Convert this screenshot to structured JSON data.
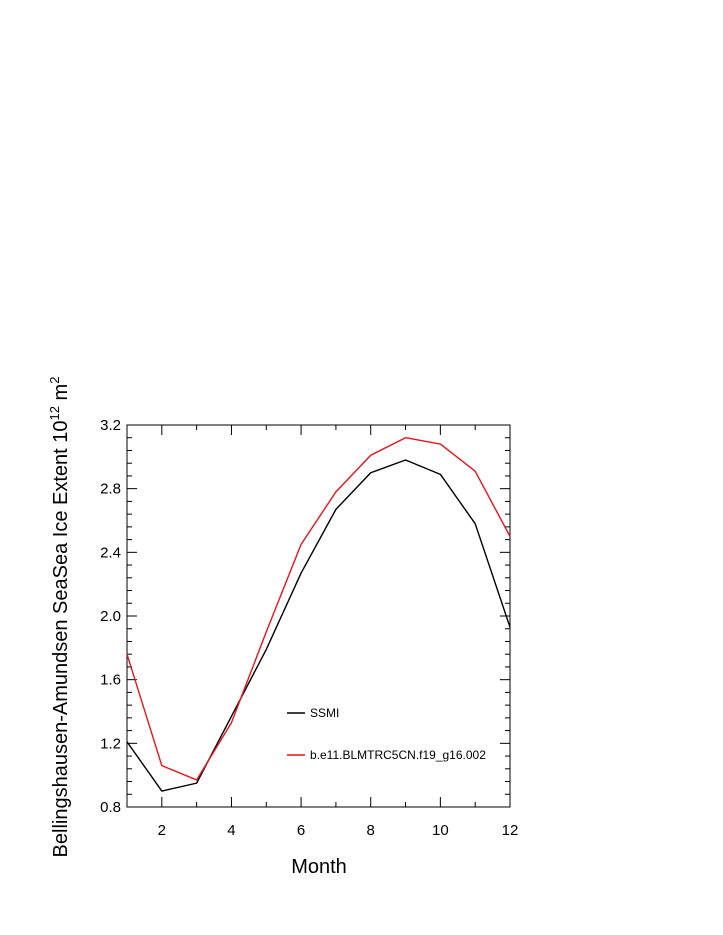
{
  "chart_data": {
    "type": "line",
    "xlabel": "Month",
    "ylabel": {
      "text": "Bellingshausen-Amundsen SeaSea Ice Extent 10",
      "exponent1": "12",
      "unit": " m",
      "exponent2": "2"
    },
    "xlim": [
      1,
      12
    ],
    "ylim": [
      0.8,
      3.2
    ],
    "x_ticks": [
      2,
      4,
      6,
      8,
      10,
      12
    ],
    "x_tick_labels": [
      "2",
      "4",
      "6",
      "8",
      "10",
      "12"
    ],
    "y_ticks": [
      0.8,
      1.2,
      1.6,
      2.0,
      2.4,
      2.8,
      3.2
    ],
    "y_tick_labels": [
      "0.8",
      "1.2",
      "1.6",
      "2.0",
      "2.4",
      "2.8",
      "3.2"
    ],
    "grid": false,
    "legend_placement": "bottom-right inside plot",
    "x": [
      1,
      2,
      3,
      4,
      5,
      6,
      7,
      8,
      9,
      10,
      11,
      12
    ],
    "series": [
      {
        "name": "SSMI",
        "color": "#000000",
        "values": [
          1.21,
          0.9,
          0.95,
          1.37,
          1.79,
          2.27,
          2.67,
          2.9,
          2.98,
          2.89,
          2.58,
          1.93
        ]
      },
      {
        "name": "b.e11.BLMTRC5CN.f19_g16.002",
        "color": "#e8141c",
        "values": [
          1.76,
          1.06,
          0.97,
          1.33,
          1.9,
          2.45,
          2.78,
          3.01,
          3.12,
          3.08,
          2.91,
          2.5
        ]
      }
    ]
  }
}
